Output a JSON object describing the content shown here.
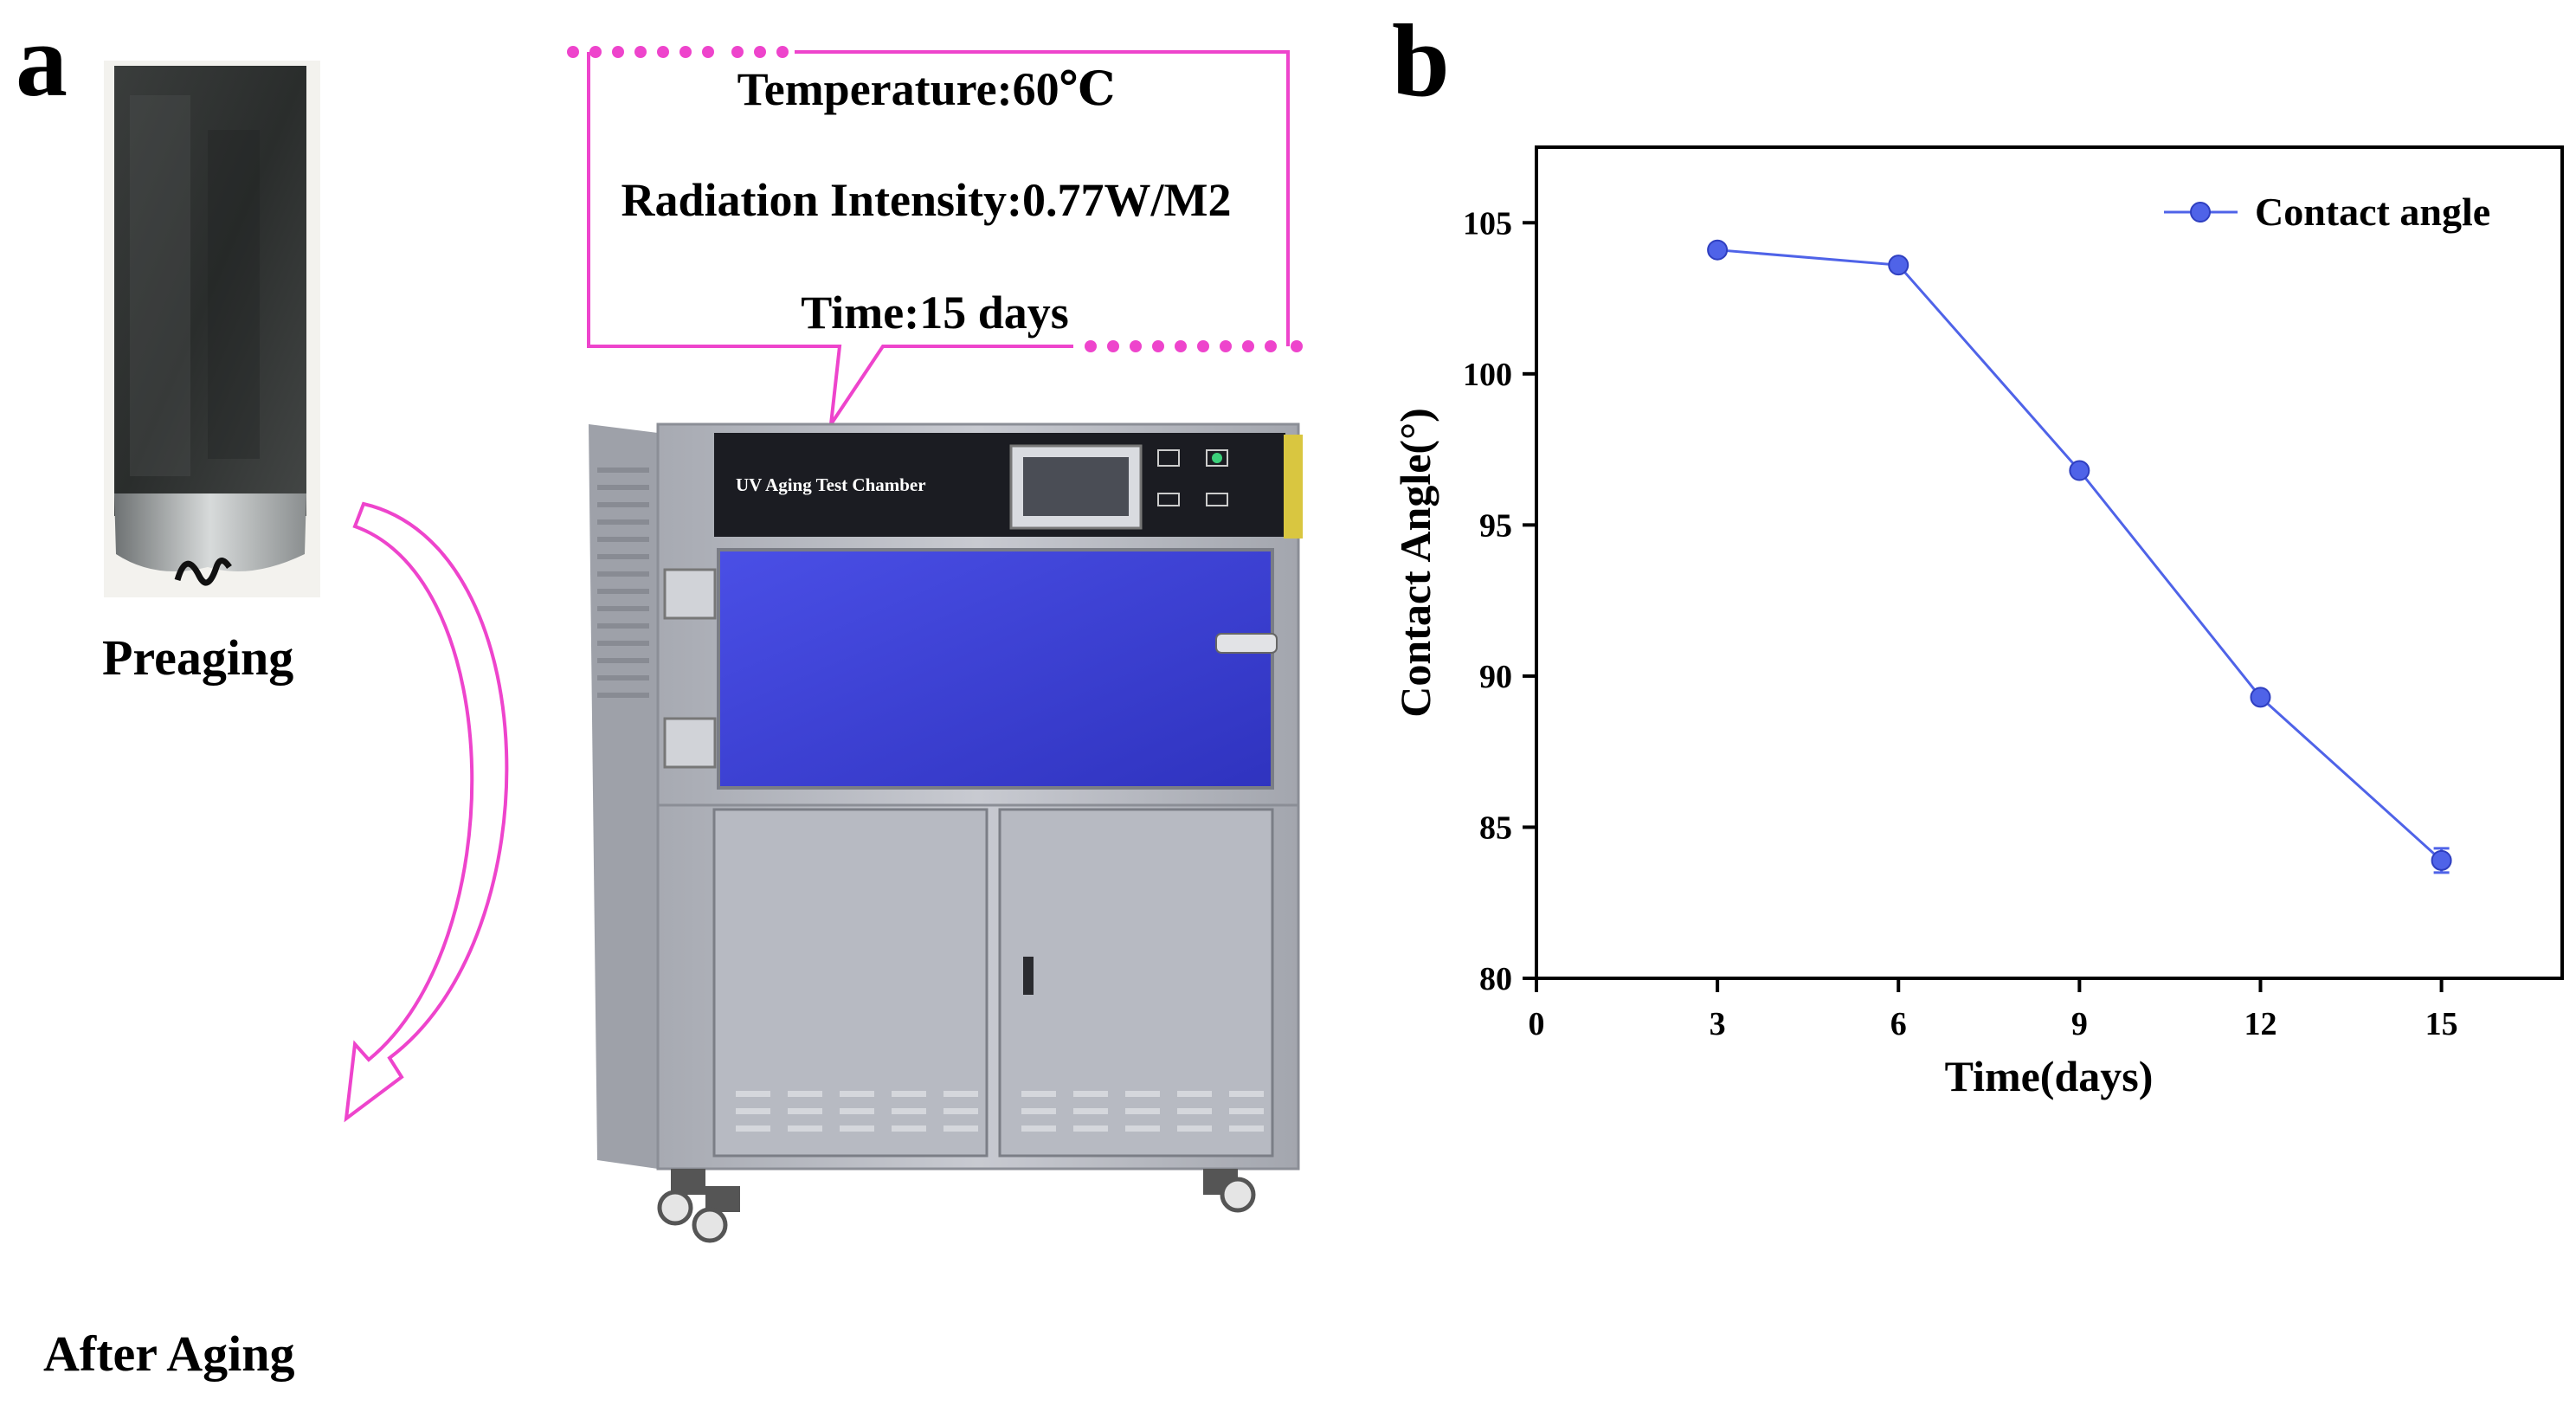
{
  "panel_a": {
    "label": "a",
    "preaging_caption": "Preaging",
    "after_aging_caption": "After Aging",
    "callout": {
      "temperature": "Temperature:60℃",
      "radiation": "Radiation Intensity:0.77W/M2",
      "time": "Time:15 days"
    },
    "chamber_label": "UV Aging Test Chamber",
    "colors": {
      "callout": "#ee44cc",
      "chamber_door": "#3b3fd6",
      "chamber_body": "#b9bcc4"
    }
  },
  "panel_b": {
    "label": "b"
  },
  "chart_data": {
    "type": "line",
    "title": "",
    "xlabel": "Time(days)",
    "ylabel": "Contact Angle(°)",
    "xlim": [
      0,
      17
    ],
    "ylim": [
      80,
      107.5
    ],
    "xticks": [
      0,
      3,
      6,
      9,
      12,
      15
    ],
    "yticks": [
      80,
      85,
      90,
      95,
      100,
      105
    ],
    "legend": {
      "position": "top-right"
    },
    "series": [
      {
        "name": "Contact angle",
        "color": "#4f63e8",
        "x": [
          3,
          6,
          9,
          12,
          15
        ],
        "y": [
          104.1,
          103.6,
          96.8,
          89.3,
          83.9
        ],
        "yerr": [
          0.15,
          0.15,
          0.15,
          0.15,
          0.4
        ]
      }
    ]
  }
}
